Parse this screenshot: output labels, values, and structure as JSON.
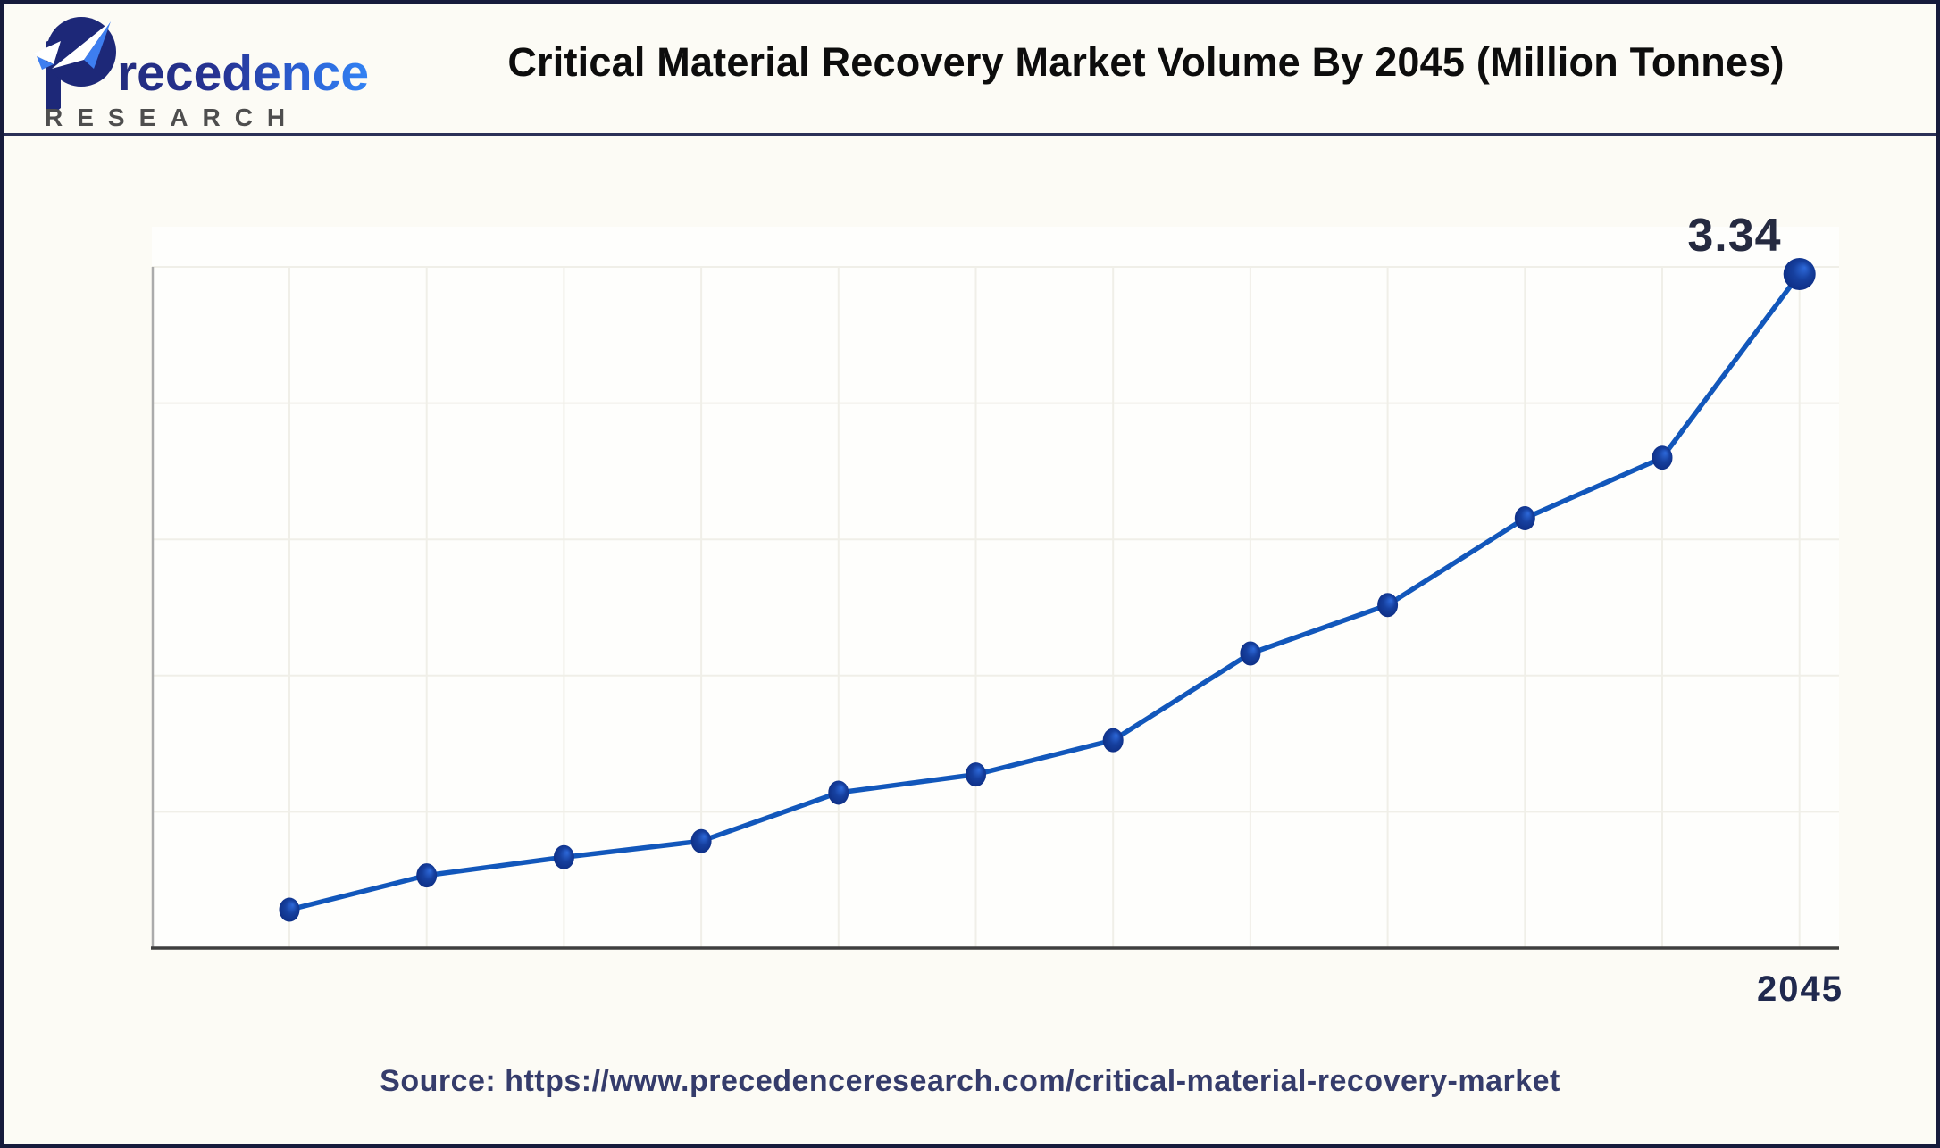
{
  "header": {
    "logo": {
      "name": "Precedence Research",
      "brand": "Precedence",
      "brand_tail": "recedence",
      "subtitle": "RESEARCH"
    },
    "title": "Critical Material Recovery Market Volume By 2045 (Million Tonnes)"
  },
  "chart_data": {
    "type": "line",
    "title": "Critical Material Recovery Market Volume By 2045 (Million Tonnes)",
    "unit": "Million Tonnes",
    "xlabel": "",
    "ylabel": "",
    "x_tick_labels": [
      "",
      "",
      "",
      "",
      "",
      "",
      "",
      "",
      "",
      "",
      "",
      "2045"
    ],
    "values": [
      0.19,
      0.36,
      0.45,
      0.53,
      0.77,
      0.86,
      1.03,
      1.46,
      1.7,
      2.13,
      2.43,
      3.34
    ],
    "point_labels": [
      "",
      "",
      "",
      "",
      "",
      "",
      "",
      "",
      "",
      "",
      "",
      "3.34"
    ],
    "ylim": [
      0,
      3.38
    ],
    "grid": true,
    "legend": false,
    "colors": {
      "line": "#1257bb",
      "point_core": "#0e3693",
      "point_highlight": "#2e6adb",
      "point_edge": "#0c2a7e",
      "axis_x": "#3f3f3f",
      "axis_y": "#ababab",
      "grid": "#f0efe8"
    }
  },
  "labels": {
    "final_value": "3.34",
    "final_year": "2045"
  },
  "footer": {
    "source": "Source: https://www.precedenceresearch.com/critical-material-recovery-market"
  },
  "colors": {
    "background": "#fcfbf5",
    "frame_border": "#161b3c",
    "header_divider": "#2b3057",
    "title_text": "#0d0d0d",
    "annotation_text": "#252a40",
    "year_text": "#20294e",
    "source_text": "#353c6b",
    "logo_navy": "#222b78",
    "logo_blue": "#3181f2",
    "logo_gray": "#4e4e4e"
  }
}
